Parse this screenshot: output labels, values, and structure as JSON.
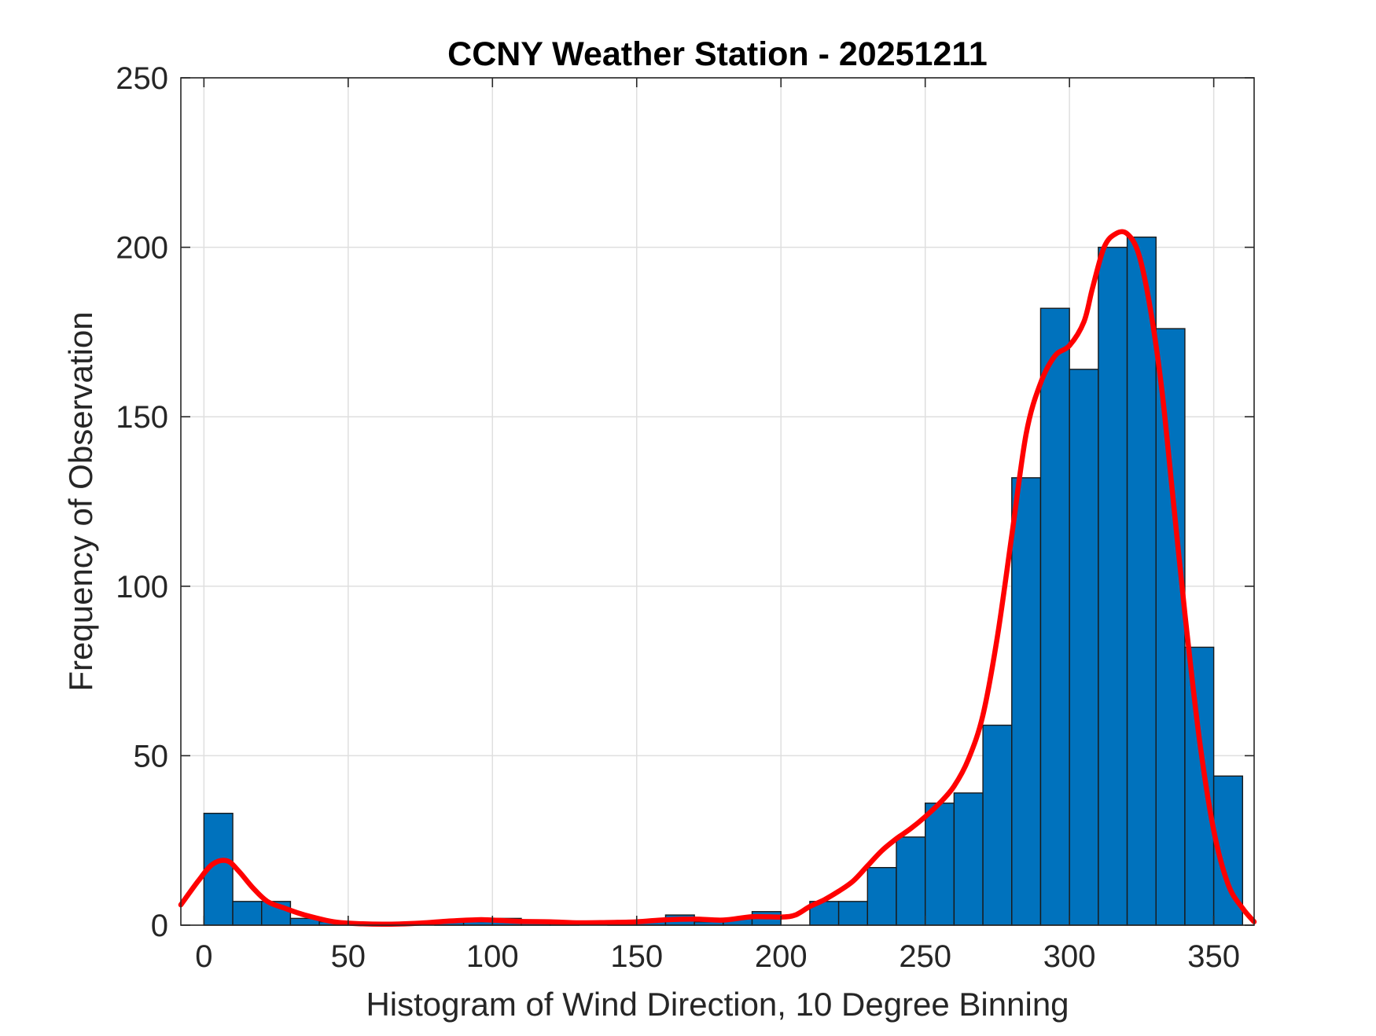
{
  "chart_data": {
    "type": "bar",
    "title": "CCNY Weather Station - 20251211",
    "xlabel": "Histogram of Wind Direction, 10 Degree Binning",
    "ylabel": "Frequency of Observation",
    "xlim": [
      -8,
      364
    ],
    "ylim": [
      0,
      250
    ],
    "xticks": [
      0,
      50,
      100,
      150,
      200,
      250,
      300,
      350
    ],
    "yticks": [
      0,
      50,
      100,
      150,
      200,
      250
    ],
    "grid": true,
    "bin_width": 10,
    "bins": [
      {
        "start": 0,
        "count": 33
      },
      {
        "start": 10,
        "count": 7
      },
      {
        "start": 20,
        "count": 7
      },
      {
        "start": 30,
        "count": 2
      },
      {
        "start": 40,
        "count": 1
      },
      {
        "start": 50,
        "count": 0
      },
      {
        "start": 60,
        "count": 0
      },
      {
        "start": 70,
        "count": 0
      },
      {
        "start": 80,
        "count": 1
      },
      {
        "start": 90,
        "count": 1
      },
      {
        "start": 100,
        "count": 2
      },
      {
        "start": 110,
        "count": 1
      },
      {
        "start": 120,
        "count": 1
      },
      {
        "start": 130,
        "count": 0
      },
      {
        "start": 140,
        "count": 1
      },
      {
        "start": 150,
        "count": 1
      },
      {
        "start": 160,
        "count": 3
      },
      {
        "start": 170,
        "count": 1
      },
      {
        "start": 180,
        "count": 2
      },
      {
        "start": 190,
        "count": 4
      },
      {
        "start": 200,
        "count": 0
      },
      {
        "start": 210,
        "count": 7
      },
      {
        "start": 220,
        "count": 7
      },
      {
        "start": 230,
        "count": 17
      },
      {
        "start": 240,
        "count": 26
      },
      {
        "start": 250,
        "count": 36
      },
      {
        "start": 260,
        "count": 39
      },
      {
        "start": 270,
        "count": 59
      },
      {
        "start": 280,
        "count": 132
      },
      {
        "start": 290,
        "count": 182
      },
      {
        "start": 300,
        "count": 164
      },
      {
        "start": 310,
        "count": 200
      },
      {
        "start": 320,
        "count": 203
      },
      {
        "start": 330,
        "count": 176
      },
      {
        "start": 340,
        "count": 82
      },
      {
        "start": 350,
        "count": 44
      }
    ],
    "density_curve": {
      "x": [
        -8,
        -2,
        3,
        8,
        12,
        17,
        22,
        28,
        35,
        45,
        55,
        65,
        75,
        85,
        95,
        100,
        110,
        120,
        130,
        140,
        150,
        160,
        170,
        180,
        190,
        200,
        205,
        210,
        215,
        220,
        225,
        230,
        235,
        240,
        245,
        250,
        255,
        260,
        265,
        270,
        275,
        280,
        285,
        290,
        295,
        300,
        305,
        308,
        312,
        316,
        320,
        324,
        328,
        332,
        336,
        340,
        345,
        350,
        355,
        360,
        364
      ],
      "y": [
        6,
        13,
        18,
        19,
        16,
        11,
        7,
        5,
        3,
        1,
        0.4,
        0.3,
        0.6,
        1.2,
        1.6,
        1.5,
        1.1,
        1,
        0.7,
        0.8,
        1,
        1.6,
        1.8,
        1.5,
        2.5,
        2.4,
        3,
        5.5,
        7.5,
        10,
        13,
        17.5,
        22,
        25.5,
        28.5,
        32,
        36,
        41,
        49,
        62,
        85,
        115,
        145,
        160,
        168,
        171,
        178,
        188,
        200,
        204,
        204,
        198,
        182,
        158,
        125,
        92,
        55,
        28,
        12,
        5,
        1
      ],
      "color": "#ff0000"
    },
    "bar_color": "#0072bd"
  }
}
